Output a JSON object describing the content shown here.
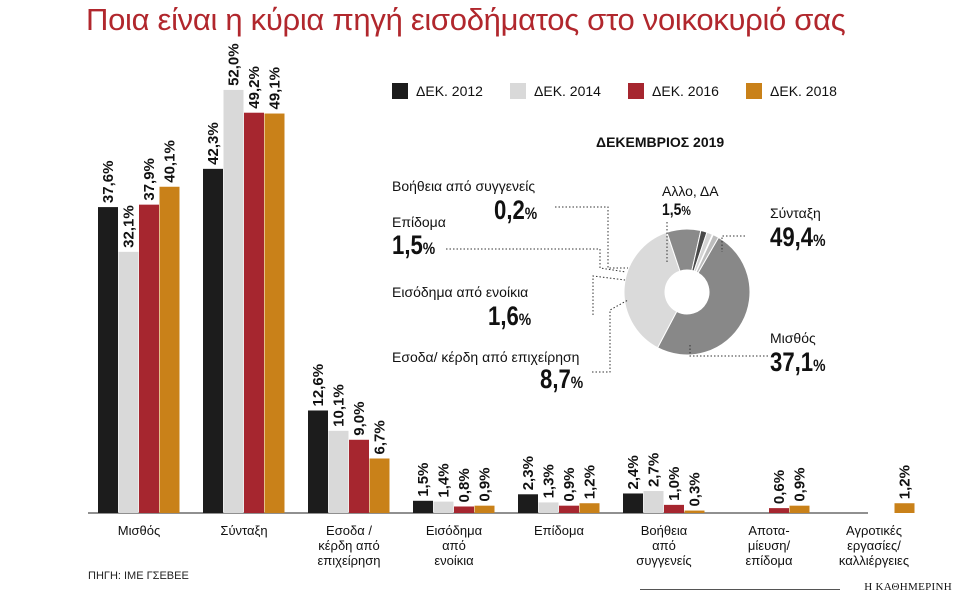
{
  "title": "Ποια είναι η κύρια πηγή εισοδήματος στο νοικοκυριό σας",
  "source": "ΠΗΓΗ: ΙΜΕ ΓΣΕΒΕΕ",
  "brand": "Η ΚΑΘΗΜΕΡΙΝΗ",
  "colors": {
    "title": "#b1272d",
    "s2012": "#1c1c1c",
    "s2014": "#d9d9d9",
    "s2016": "#a6262f",
    "s2018": "#c98119"
  },
  "chart_data": [
    {
      "type": "bar",
      "categories": [
        "Μισθός",
        "Σύνταξη",
        "Εσοδα / κέρδη από επιχείρηση",
        "Εισόδημα από ενοίκια",
        "Επίδομα",
        "Βοήθεια από συγγενείς",
        "Αποταμίευση/ επίδομα",
        "Αγροτικές εργασίες/ καλλιέργειες"
      ],
      "category_lines": [
        [
          "Μισθός"
        ],
        [
          "Σύνταξη"
        ],
        [
          "Εσοδα /",
          "κέρδη από",
          "επιχείρηση"
        ],
        [
          "Εισόδημα",
          "από",
          "ενοίκια"
        ],
        [
          "Επίδομα"
        ],
        [
          "Βοήθεια",
          "από",
          "συγγενείς"
        ],
        [
          "Αποτα-",
          "μίευση/",
          "επίδομα"
        ],
        [
          "Αγροτικές",
          "εργασίες/",
          "καλλιέργειες"
        ]
      ],
      "series": [
        {
          "name": "ΔΕΚ. 2012",
          "color": "#1c1c1c",
          "values": [
            37.6,
            42.3,
            12.6,
            1.5,
            2.3,
            2.4,
            null,
            null
          ]
        },
        {
          "name": "ΔΕΚ. 2014",
          "color": "#d9d9d9",
          "values": [
            32.1,
            52.0,
            10.1,
            1.4,
            1.3,
            2.7,
            null,
            null
          ]
        },
        {
          "name": "ΔΕΚ. 2016",
          "color": "#a6262f",
          "values": [
            37.9,
            49.2,
            9.0,
            0.8,
            0.9,
            1.0,
            0.6,
            null
          ]
        },
        {
          "name": "ΔΕΚ. 2018",
          "color": "#c98119",
          "values": [
            40.1,
            49.1,
            6.7,
            0.9,
            1.2,
            0.3,
            0.9,
            1.2
          ]
        }
      ],
      "value_labels": [
        [
          "37,6%",
          "42,3%",
          "12,6%",
          "1,5%",
          "2,3%",
          "2,4%",
          null,
          null
        ],
        [
          "32,1%",
          "52,0%",
          "10,1%",
          "1,4%",
          "1,3%",
          "2,7%",
          null,
          null
        ],
        [
          "37,9%",
          "49,2%",
          "9,0%",
          "0,8%",
          "0,9%",
          "1,0%",
          "0,6%",
          null
        ],
        [
          "40,1%",
          "49,1%",
          "6,7%",
          "0,9%",
          "1,2%",
          "0,3%",
          "0,9%",
          "1,2%"
        ]
      ],
      "ylim": [
        0,
        55
      ],
      "grid": false,
      "legend": "top-right"
    },
    {
      "type": "pie",
      "title": "ΔΕΚΕΜΒΡΙΟΣ 2019",
      "donut": true,
      "slices": [
        {
          "label": "Σύνταξη",
          "value": 49.4,
          "display": "49,4",
          "color": "#888888"
        },
        {
          "label": "Μισθός",
          "value": 37.1,
          "display": "37,1",
          "color": "#dadada"
        },
        {
          "label": "Εσοδα/ κέρδη από επιχείρηση",
          "value": 8.7,
          "display": "8,7",
          "color": "#8a8a8a"
        },
        {
          "label": "Εισόδημα από ενοίκια",
          "value": 1.6,
          "display": "1,6",
          "color": "#4a4a4a"
        },
        {
          "label": "Επίδομα",
          "value": 1.5,
          "display": "1,5",
          "color": "#d4d4d4"
        },
        {
          "label": "Βοήθεια από συγγενείς",
          "value": 0.2,
          "display": "0,2",
          "color": "#222222"
        },
        {
          "label": "Αλλο, ΔΑ",
          "value": 1.5,
          "display": "1,5",
          "color": "#bcbcbc"
        }
      ]
    }
  ]
}
